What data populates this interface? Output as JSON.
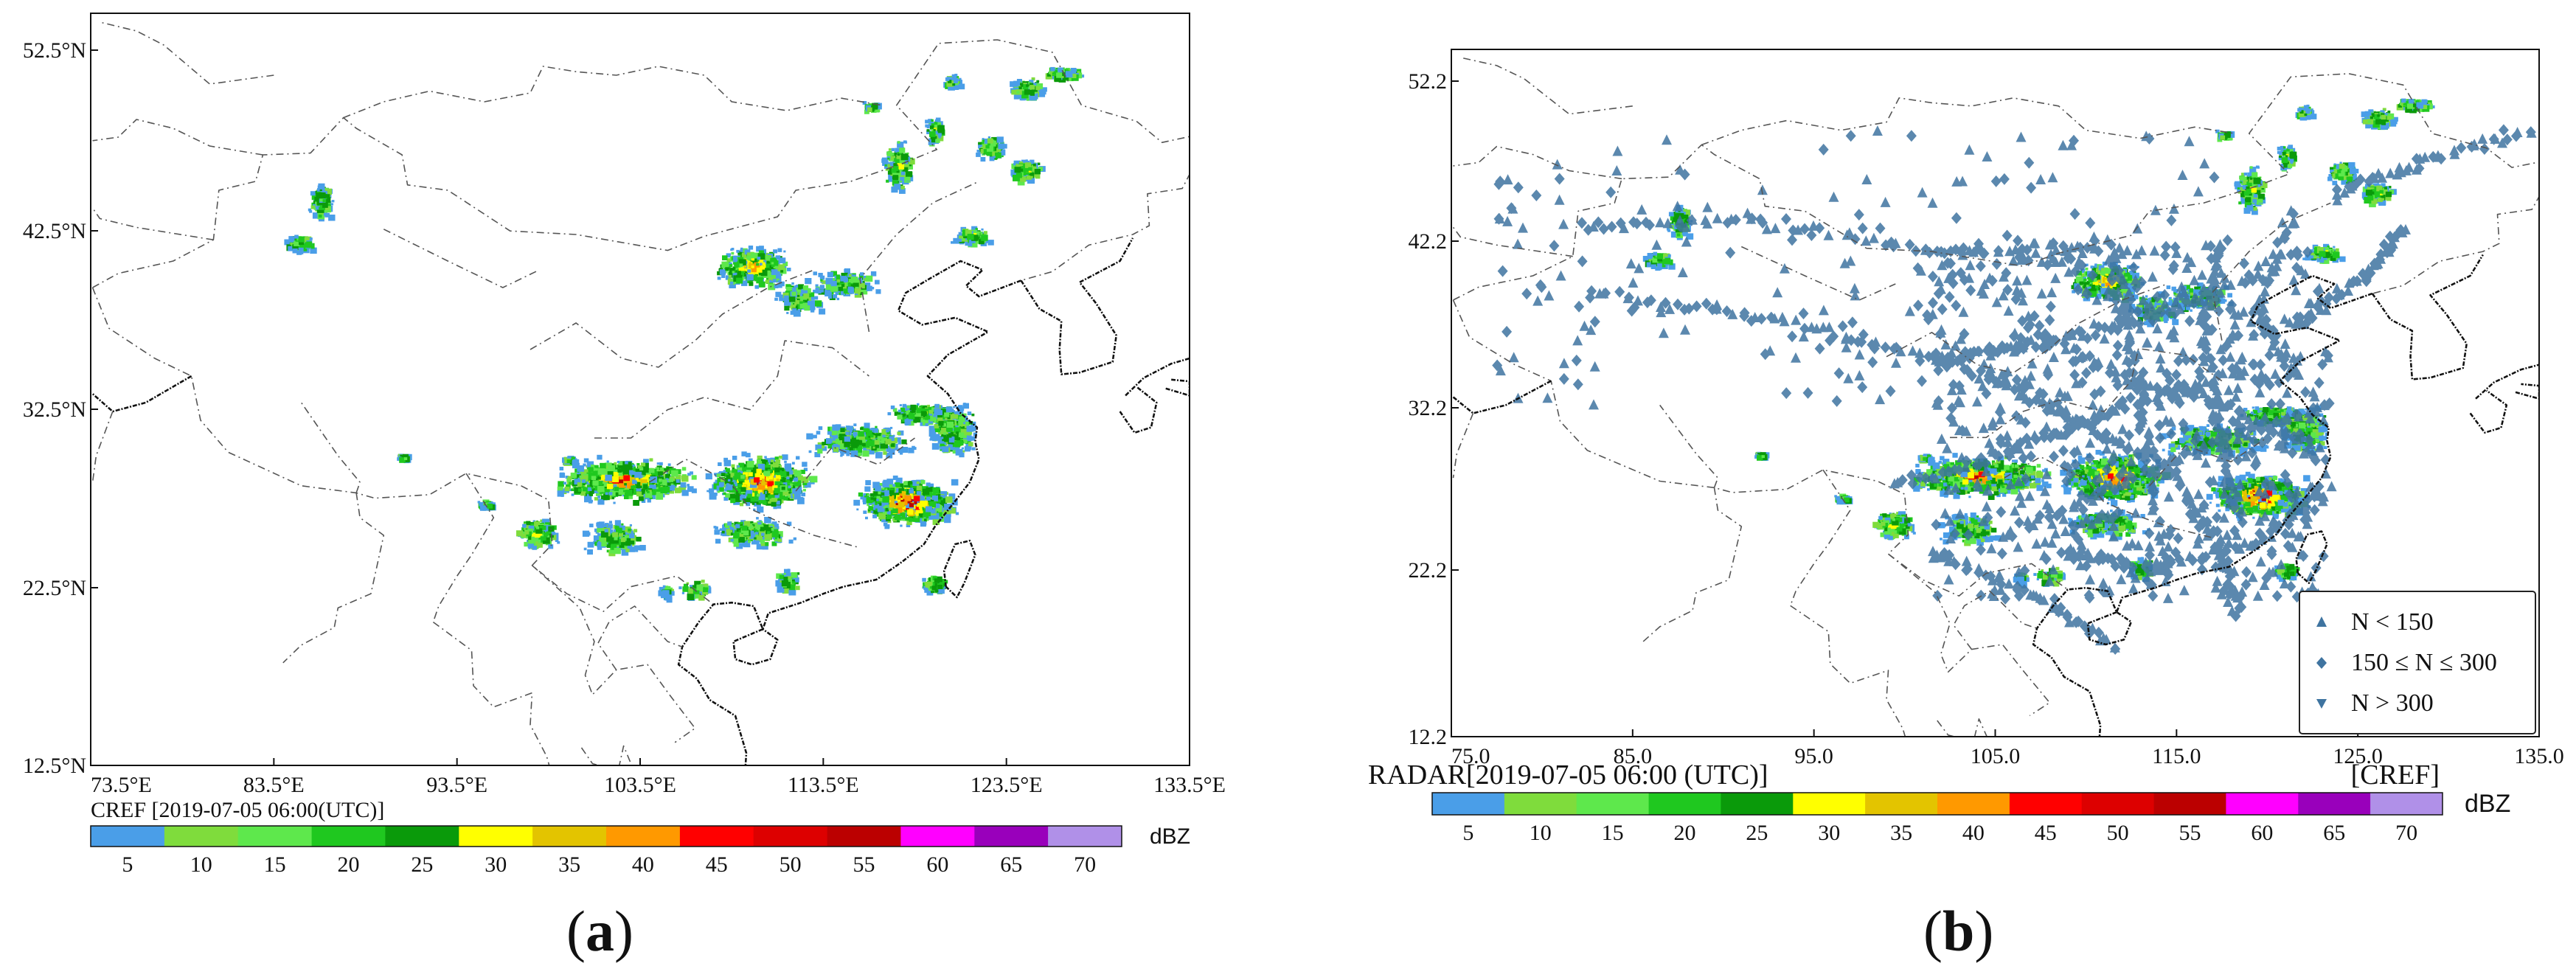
{
  "panels": [
    {
      "id": "a",
      "label_open": "(",
      "label_letter": "a",
      "label_close": ")",
      "y_ticks": [
        "52.5°N",
        "42.5°N",
        "32.5°N",
        "22.5°N",
        "12.5°N"
      ],
      "x_ticks": [
        "73.5°E",
        "83.5°E",
        "93.5°E",
        "103.5°E",
        "113.5°E",
        "123.5°E",
        "133.5°E"
      ],
      "colorbar_title": "CREF [2019-07-05 06:00(UTC)]",
      "colorbar_unit": "dBZ",
      "colorbar_tag": ""
    },
    {
      "id": "b",
      "label_open": "(",
      "label_letter": "b",
      "label_close": ")",
      "y_ticks": [
        "52.2",
        "42.2",
        "32.2",
        "22.2",
        "12.2"
      ],
      "x_ticks": [
        "75.0",
        "85.0",
        "95.0",
        "105.0",
        "115.0",
        "125.0",
        "135.0"
      ],
      "colorbar_title": "RADAR[2019-07-05 06:00 (UTC)]",
      "colorbar_unit": "dBZ",
      "colorbar_tag": "[CREF]",
      "legend": [
        {
          "label": "N < 150",
          "marker": "triangle-up"
        },
        {
          "label": "150 ≤ N ≤ 300",
          "marker": "diamond"
        },
        {
          "label": "N > 300",
          "marker": "triangle-down"
        }
      ]
    }
  ],
  "colorbar": {
    "tick_labels": [
      "5",
      "10",
      "15",
      "20",
      "25",
      "30",
      "35",
      "40",
      "45",
      "50",
      "55",
      "60",
      "65",
      "70"
    ],
    "colors": [
      "#4a9ee8",
      "#7fdc3c",
      "#5ee84c",
      "#1fc81f",
      "#0a9a0a",
      "#ffff00",
      "#e3c400",
      "#ff9900",
      "#ff0000",
      "#dd0000",
      "#bb0000",
      "#ff00ff",
      "#9900bb",
      "#b090e8"
    ]
  },
  "marker_color": "#3f74a0"
}
